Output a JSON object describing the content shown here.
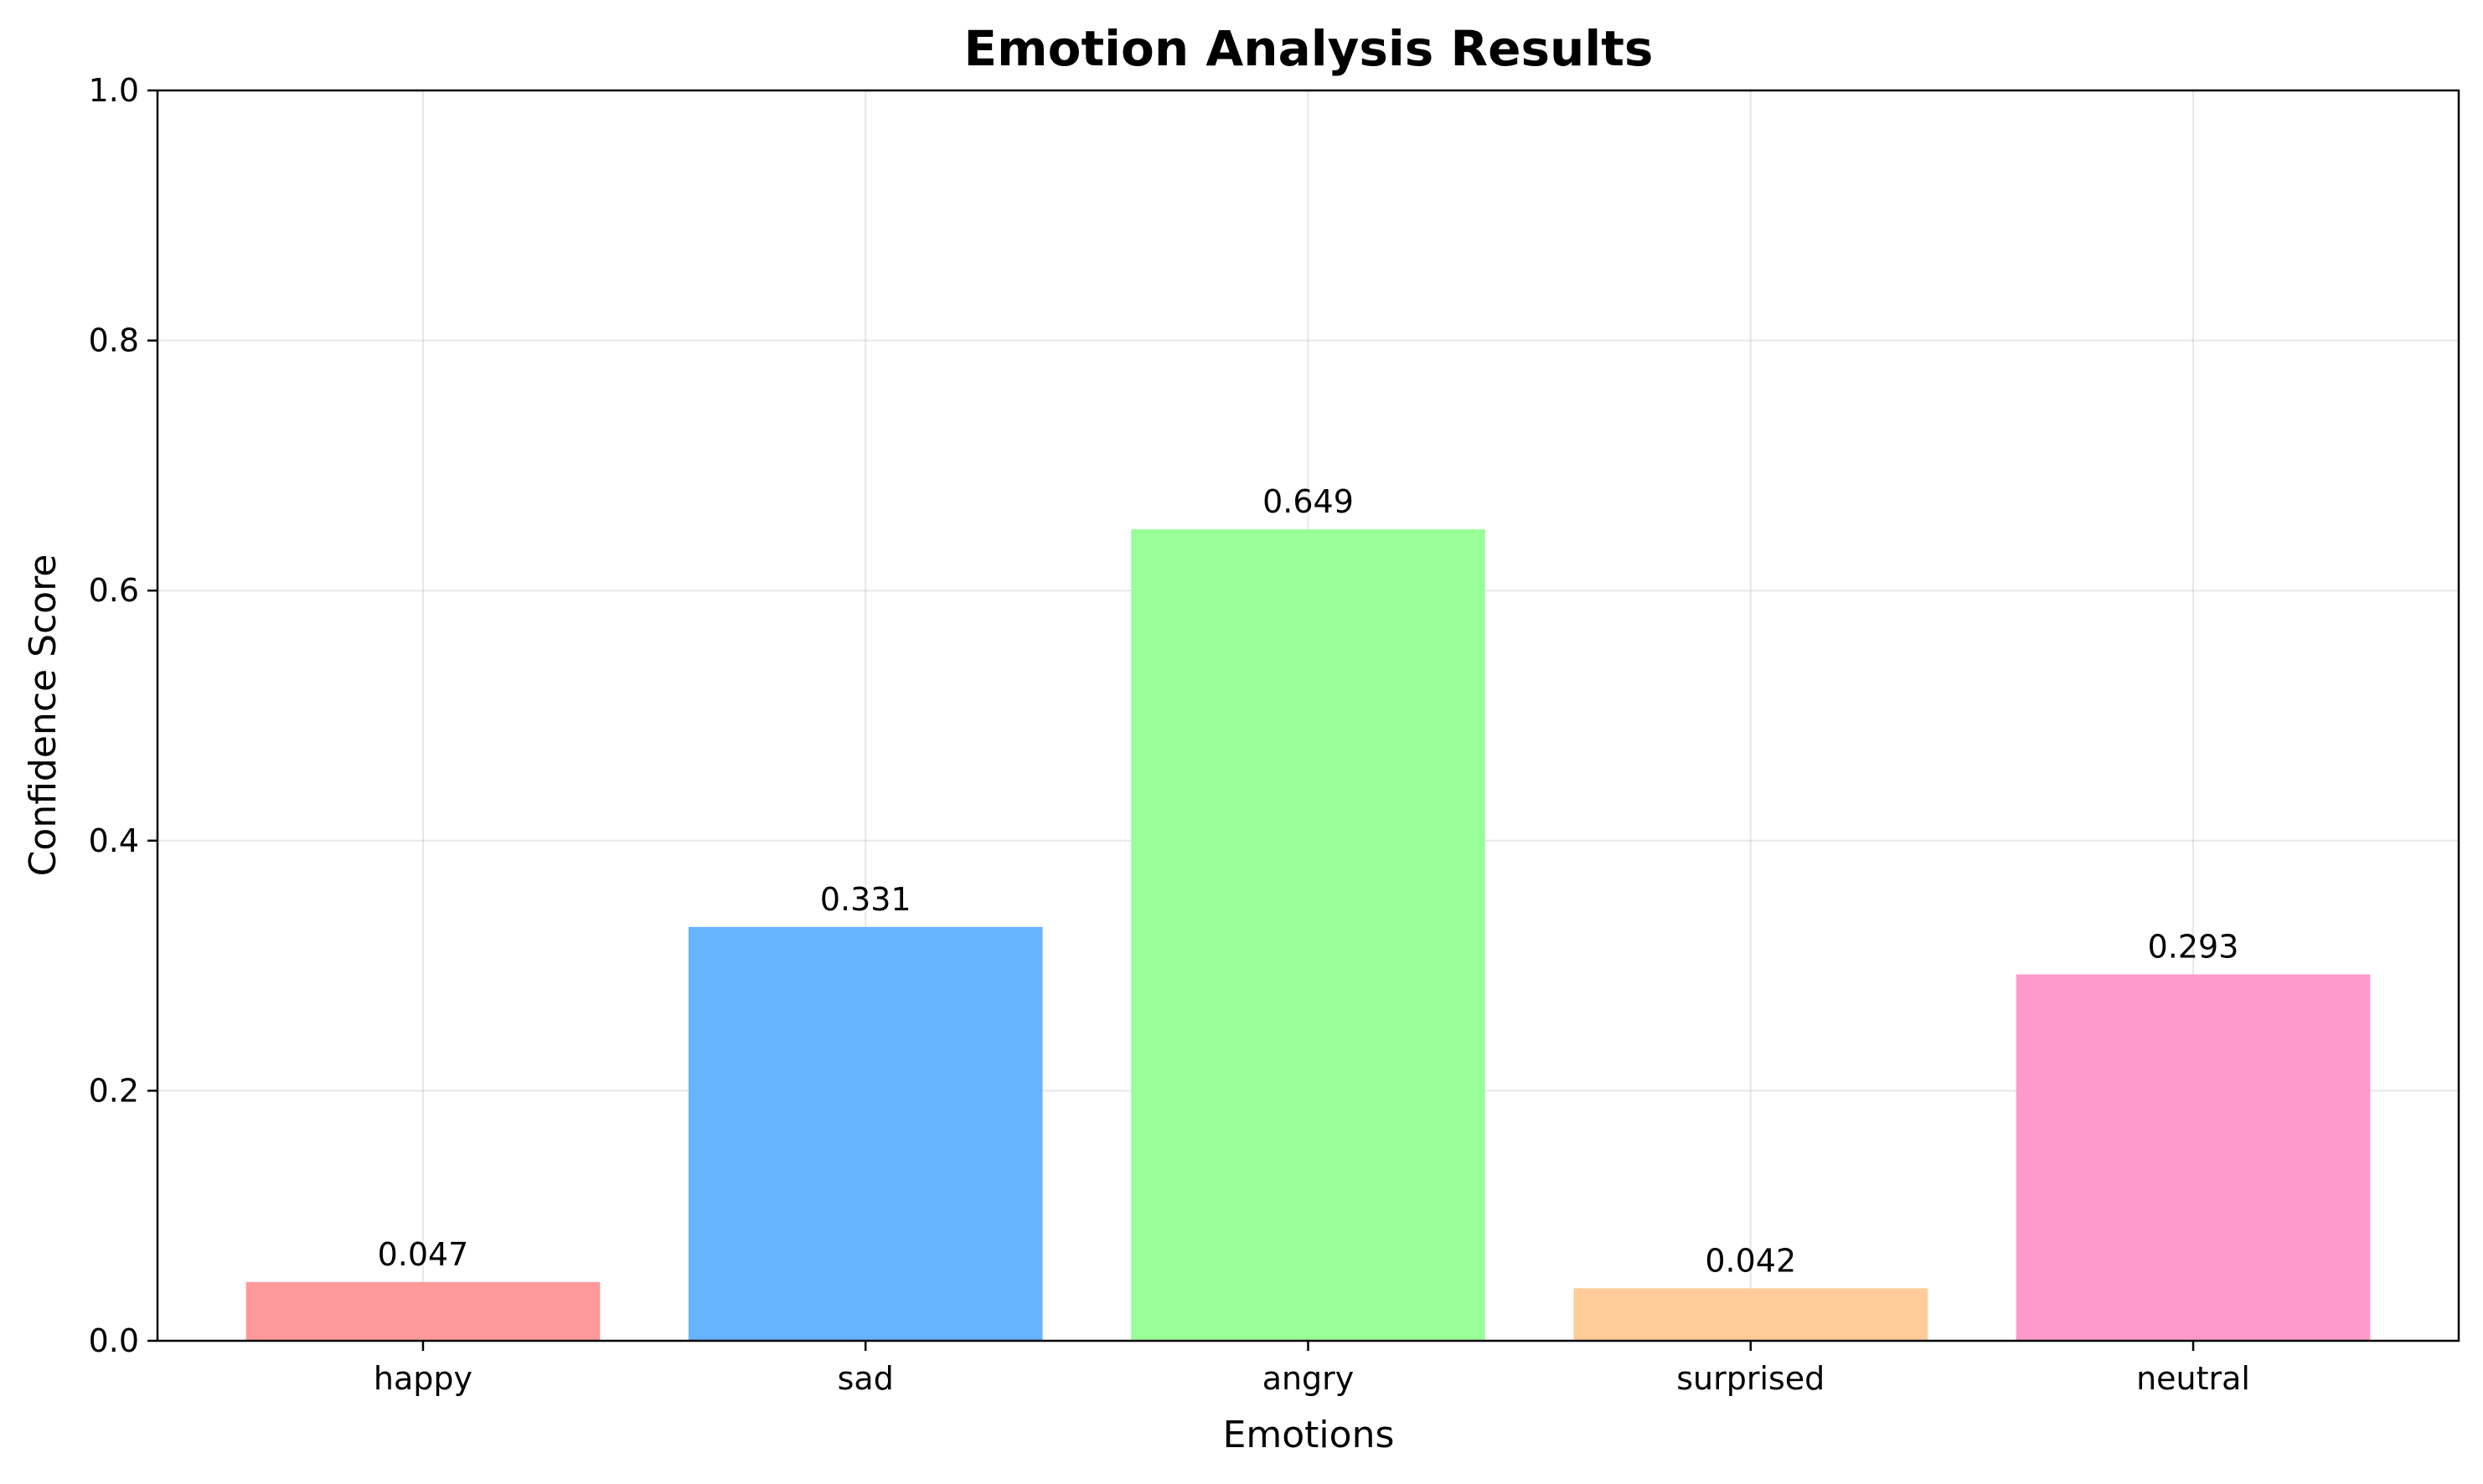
{
  "chart_data": {
    "type": "bar",
    "title": "Emotion Analysis Results",
    "xlabel": "Emotions",
    "ylabel": "Confidence Score",
    "categories": [
      "happy",
      "sad",
      "angry",
      "surprised",
      "neutral"
    ],
    "values": [
      0.047,
      0.331,
      0.649,
      0.042,
      0.293
    ],
    "value_labels": [
      "0.047",
      "0.331",
      "0.649",
      "0.042",
      "0.293"
    ],
    "colors": [
      "#ff9999",
      "#66b3ff",
      "#99ff99",
      "#ffcc99",
      "#ff99cc"
    ],
    "ylim": [
      0,
      1.0
    ],
    "yticks": [
      0.0,
      0.2,
      0.4,
      0.6,
      0.8,
      1.0
    ],
    "ytick_labels": [
      "0.0",
      "0.2",
      "0.4",
      "0.6",
      "0.8",
      "1.0"
    ],
    "grid": true
  }
}
